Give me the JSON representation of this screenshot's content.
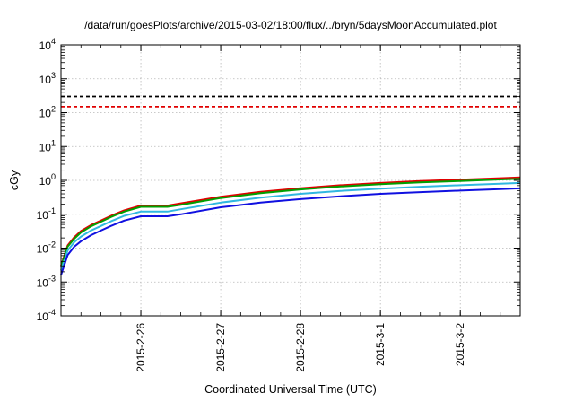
{
  "chart_data": {
    "type": "line",
    "title": "/data/run/goesPlots/archive/2015-03-02/18:00/flux/../bryn/5daysMoonAccumulated.plot",
    "xlabel": "Coordinated Universal Time (UTC)",
    "ylabel": "cGy",
    "yscale": "log",
    "ylim": [
      0.0001,
      10000
    ],
    "xlim": [
      "2015-02-25 00:00",
      "2015-03-02 18:00"
    ],
    "grid": true,
    "legend": "none",
    "y_ticks": [
      {
        "base": "10",
        "exp": "-4"
      },
      {
        "base": "10",
        "exp": "-3"
      },
      {
        "base": "10",
        "exp": "-2"
      },
      {
        "base": "10",
        "exp": "-1"
      },
      {
        "base": "10",
        "exp": "0"
      },
      {
        "base": "10",
        "exp": "1"
      },
      {
        "base": "10",
        "exp": "2"
      },
      {
        "base": "10",
        "exp": "3"
      },
      {
        "base": "10",
        "exp": "4"
      }
    ],
    "x_ticks": [
      "2015-2-26",
      "2015-2-27",
      "2015-2-28",
      "2015-3-1",
      "2015-3-2"
    ],
    "reference_lines": [
      {
        "y": 300,
        "color": "#000000",
        "style": "dashed"
      },
      {
        "y": 150,
        "color": "#e00000",
        "style": "dashed"
      }
    ],
    "series": [
      {
        "color": "#e00000",
        "x": [
          "2015-02-25 00:00",
          "2015-02-25 02:00",
          "2015-02-25 04:00",
          "2015-02-25 06:00",
          "2015-02-25 09:00",
          "2015-02-25 12:00",
          "2015-02-25 15:00",
          "2015-02-25 19:00",
          "2015-02-26 00:00",
          "2015-02-26 08:00",
          "2015-02-26 12:00",
          "2015-02-27 00:00",
          "2015-02-27 12:00",
          "2015-02-28 00:00",
          "2015-02-28 12:00",
          "2015-03-01 00:00",
          "2015-03-01 12:00",
          "2015-03-02 00:00",
          "2015-03-02 12:00",
          "2015-03-02 18:00"
        ],
        "y": [
          0.003,
          0.012,
          0.021,
          0.032,
          0.048,
          0.065,
          0.09,
          0.13,
          0.18,
          0.18,
          0.21,
          0.33,
          0.46,
          0.59,
          0.72,
          0.84,
          0.95,
          1.05,
          1.16,
          1.22
        ]
      },
      {
        "color": "#00a000",
        "x": [
          "2015-02-25 00:00",
          "2015-02-25 02:00",
          "2015-02-25 04:00",
          "2015-02-25 06:00",
          "2015-02-25 09:00",
          "2015-02-25 12:00",
          "2015-02-25 15:00",
          "2015-02-25 19:00",
          "2015-02-26 00:00",
          "2015-02-26 08:00",
          "2015-02-26 12:00",
          "2015-02-27 00:00",
          "2015-02-27 12:00",
          "2015-02-28 00:00",
          "2015-02-28 12:00",
          "2015-03-01 00:00",
          "2015-03-01 12:00",
          "2015-03-02 00:00",
          "2015-03-02 12:00",
          "2015-03-02 18:00"
        ],
        "y": [
          0.0028,
          0.011,
          0.019,
          0.029,
          0.044,
          0.06,
          0.083,
          0.12,
          0.165,
          0.165,
          0.19,
          0.3,
          0.42,
          0.54,
          0.66,
          0.77,
          0.87,
          0.96,
          1.06,
          1.11
        ]
      },
      {
        "color": "#30b8e0",
        "x": [
          "2015-02-25 00:00",
          "2015-02-25 02:00",
          "2015-02-25 04:00",
          "2015-02-25 06:00",
          "2015-02-25 09:00",
          "2015-02-25 12:00",
          "2015-02-25 15:00",
          "2015-02-25 19:00",
          "2015-02-26 00:00",
          "2015-02-26 08:00",
          "2015-02-26 12:00",
          "2015-02-27 00:00",
          "2015-02-27 12:00",
          "2015-02-28 00:00",
          "2015-02-28 12:00",
          "2015-03-01 00:00",
          "2015-03-01 12:00",
          "2015-03-02 00:00",
          "2015-03-02 12:00",
          "2015-03-02 18:00"
        ],
        "y": [
          0.0022,
          0.0085,
          0.015,
          0.022,
          0.033,
          0.045,
          0.062,
          0.09,
          0.12,
          0.12,
          0.14,
          0.22,
          0.31,
          0.4,
          0.49,
          0.57,
          0.65,
          0.72,
          0.8,
          0.84
        ]
      },
      {
        "color": "#1010e0",
        "x": [
          "2015-02-25 00:00",
          "2015-02-25 02:00",
          "2015-02-25 04:00",
          "2015-02-25 06:00",
          "2015-02-25 09:00",
          "2015-02-25 12:00",
          "2015-02-25 15:00",
          "2015-02-25 19:00",
          "2015-02-26 00:00",
          "2015-02-26 08:00",
          "2015-02-26 12:00",
          "2015-02-27 00:00",
          "2015-02-27 12:00",
          "2015-02-28 00:00",
          "2015-02-28 12:00",
          "2015-03-01 00:00",
          "2015-03-01 12:00",
          "2015-03-02 00:00",
          "2015-03-02 12:00",
          "2015-03-02 18:00"
        ],
        "y": [
          0.0016,
          0.0062,
          0.011,
          0.016,
          0.024,
          0.033,
          0.045,
          0.065,
          0.087,
          0.087,
          0.1,
          0.16,
          0.22,
          0.28,
          0.34,
          0.4,
          0.45,
          0.5,
          0.55,
          0.58
        ]
      }
    ]
  }
}
